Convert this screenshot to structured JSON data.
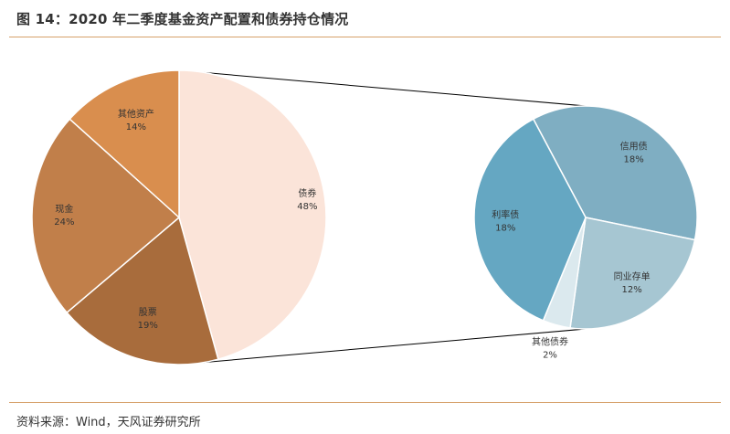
{
  "title": "图 14：2020 年二季度基金资产配置和债券持仓情况",
  "source": "资料来源：Wind，天风证券研究所",
  "chart_data": [
    {
      "type": "pie",
      "slices": [
        {
          "label": "债券",
          "value": 48,
          "value_label": "48%",
          "color": "#fbe4d9"
        },
        {
          "label": "股票",
          "value": 19,
          "value_label": "19%",
          "color": "#a86c3c"
        },
        {
          "label": "现金",
          "value": 24,
          "value_label": "24%",
          "color": "#c17f4a"
        },
        {
          "label": "其他资产",
          "value": 14,
          "value_label": "14%",
          "color": "#d98e4e"
        }
      ]
    },
    {
      "type": "pie",
      "slices": [
        {
          "label": "信用债",
          "value": 18,
          "value_label": "18%",
          "color": "#7faec2"
        },
        {
          "label": "同业存单",
          "value": 12,
          "value_label": "12%",
          "color": "#a6c6d2"
        },
        {
          "label": "其他债券",
          "value": 2,
          "value_label": "2%",
          "color": "#dbe9ee"
        },
        {
          "label": "利率债",
          "value": 18,
          "value_label": "18%",
          "color": "#65a7c2"
        }
      ]
    }
  ]
}
